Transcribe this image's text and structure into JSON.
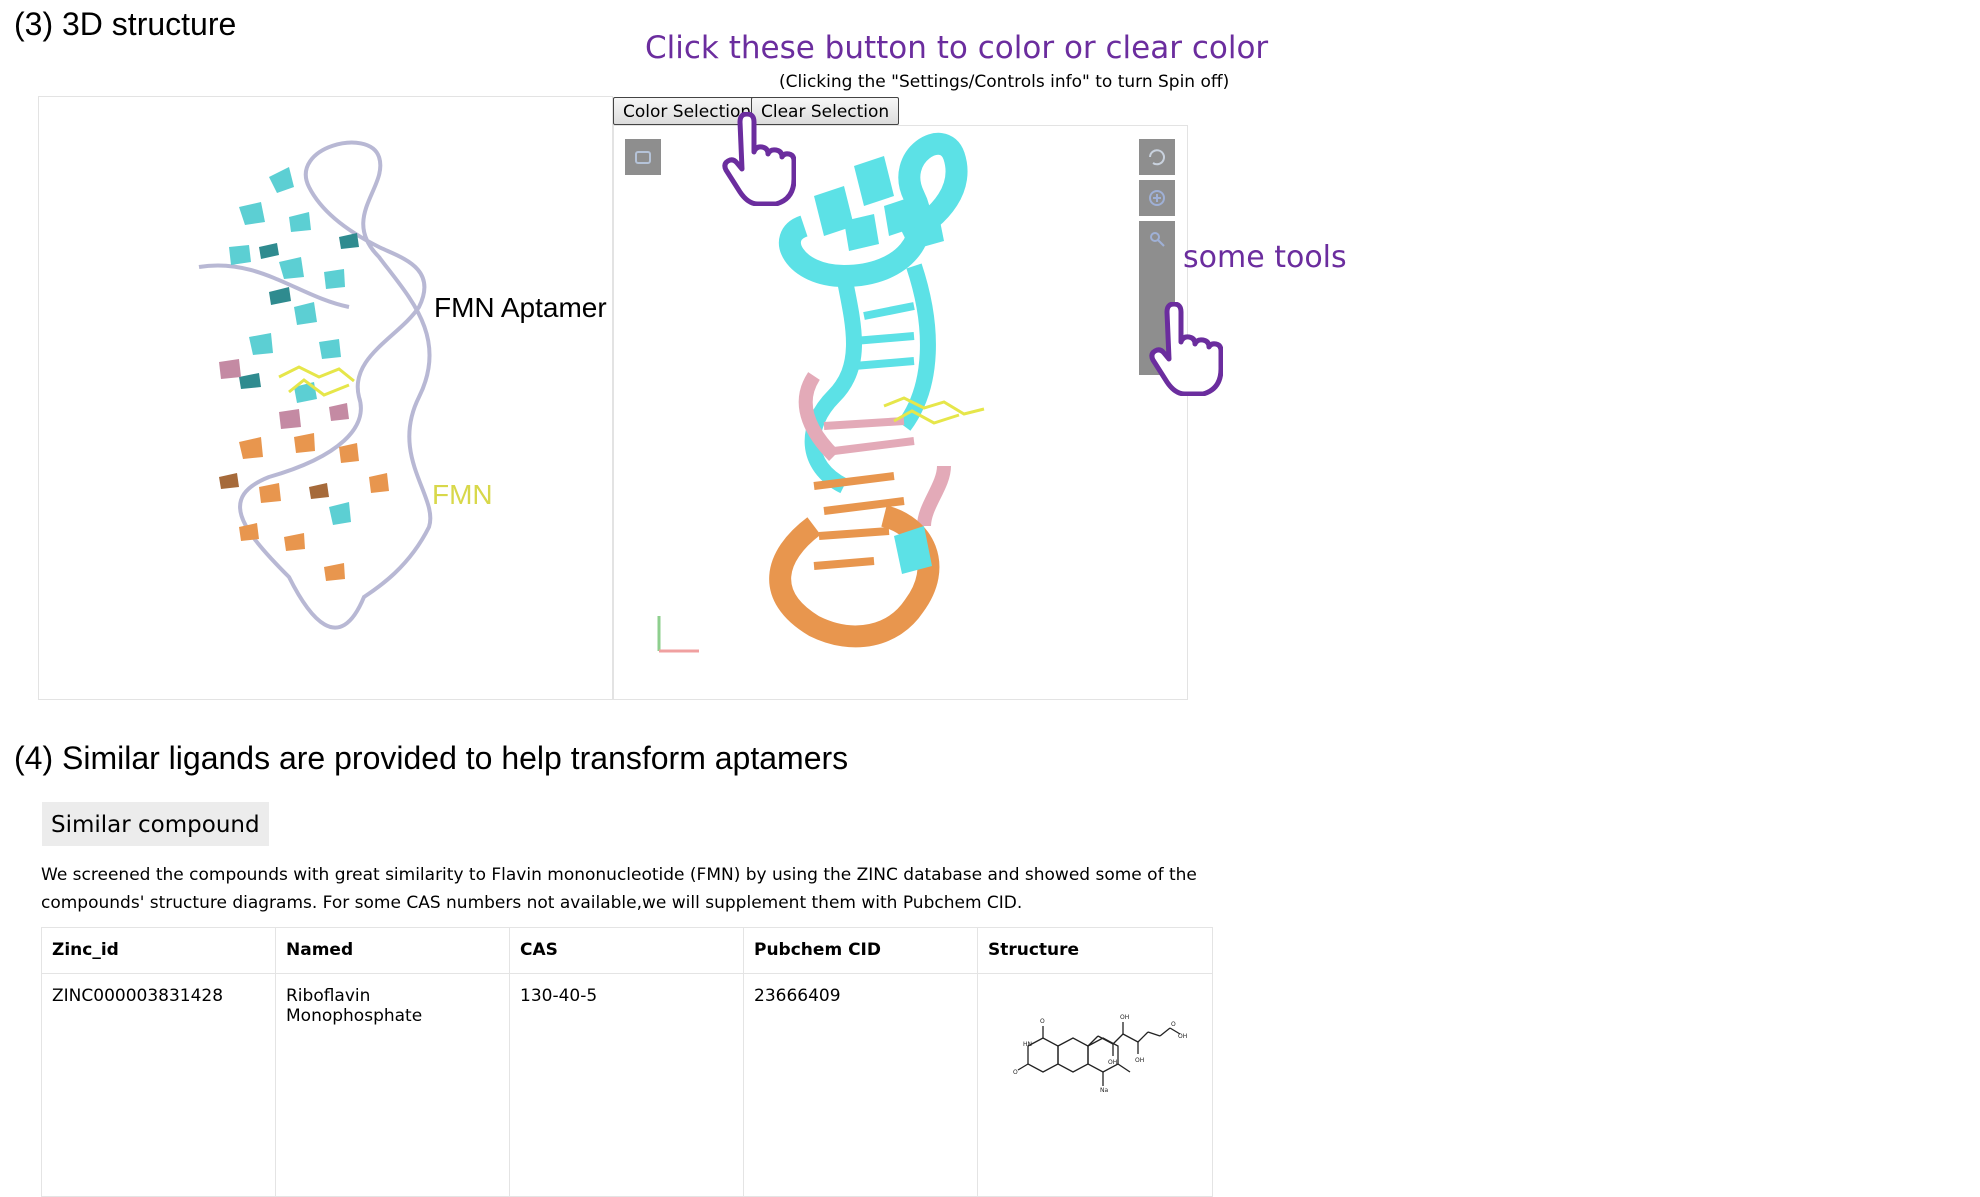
{
  "section3": {
    "title": "(3) 3D structure"
  },
  "callouts": {
    "buttons": "Click these button to color or clear color",
    "spin_note": "(Clicking the \"Settings/Controls info\" to turn Spin off)",
    "tools": "some tools"
  },
  "viewer": {
    "color_button": "Color Selection",
    "clear_button": "Clear Selection",
    "left_labels": {
      "aptamer": "FMN Aptamer",
      "ligand": "FMN"
    },
    "toolbar_icons": [
      "refresh-icon",
      "zoom-in-icon",
      "key-icon",
      "fullscreen-icon",
      "settings-icon",
      "extra-icon"
    ]
  },
  "section4": {
    "title": "(4) Similar ligands are provided to help transform aptamers",
    "tab": "Similar compound",
    "description": "We screened the compounds with great similarity to Flavin mononucleotide (FMN) by using the ZINC database and showed some of the compounds' structure diagrams. For some CAS numbers not available,we will supplement them with Pubchem CID.",
    "table": {
      "headers": [
        "Zinc_id",
        "Named",
        "CAS",
        "Pubchem CID",
        "Structure"
      ],
      "rows": [
        {
          "zinc_id": "ZINC000003831428",
          "named": "Riboflavin Monophosphate",
          "cas": "130-40-5",
          "pubchem_cid": "23666409"
        }
      ]
    }
  },
  "colors": {
    "callout": "#6b2d9e",
    "cyan": "#5ce1e6",
    "orange": "#e8964e",
    "pink": "#e3aab8",
    "yellow": "#e6e64a"
  }
}
